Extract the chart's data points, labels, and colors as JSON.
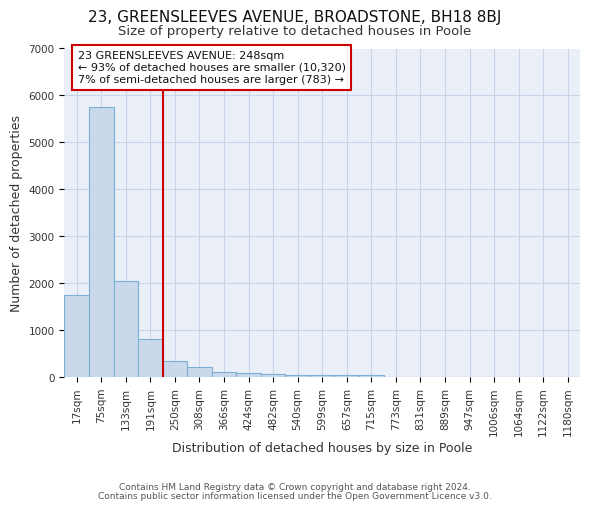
{
  "title": "23, GREENSLEEVES AVENUE, BROADSTONE, BH18 8BJ",
  "subtitle": "Size of property relative to detached houses in Poole",
  "xlabel": "Distribution of detached houses by size in Poole",
  "ylabel": "Number of detached properties",
  "bin_labels": [
    "17sqm",
    "75sqm",
    "133sqm",
    "191sqm",
    "250sqm",
    "308sqm",
    "366sqm",
    "424sqm",
    "482sqm",
    "540sqm",
    "599sqm",
    "657sqm",
    "715sqm",
    "773sqm",
    "831sqm",
    "889sqm",
    "947sqm",
    "1006sqm",
    "1064sqm",
    "1122sqm",
    "1180sqm"
  ],
  "bar_heights": [
    1750,
    5750,
    2050,
    820,
    360,
    220,
    110,
    95,
    75,
    60,
    50,
    50,
    50,
    0,
    0,
    0,
    0,
    0,
    0,
    0,
    0
  ],
  "bar_color": "#c9d9eb",
  "bar_edge_color": "#7bafd4",
  "ylim": [
    0,
    7000
  ],
  "yticks": [
    0,
    1000,
    2000,
    3000,
    4000,
    5000,
    6000,
    7000
  ],
  "red_line_bin_index": 4,
  "annotation_line1": "23 GREENSLEEVES AVENUE: 248sqm",
  "annotation_line2": "← 93% of detached houses are smaller (10,320)",
  "annotation_line3": "7% of semi-detached houses are larger (783) →",
  "annotation_box_color": "#ffffff",
  "annotation_border_color": "#cc0000",
  "red_line_color": "#cc0000",
  "grid_color": "#c8d4e8",
  "bg_color": "#eaeff8",
  "title_fontsize": 11,
  "subtitle_fontsize": 9.5,
  "axis_label_fontsize": 9,
  "tick_fontsize": 7.5,
  "footnote1": "Contains HM Land Registry data © Crown copyright and database right 2024.",
  "footnote2": "Contains public sector information licensed under the Open Government Licence v3.0."
}
